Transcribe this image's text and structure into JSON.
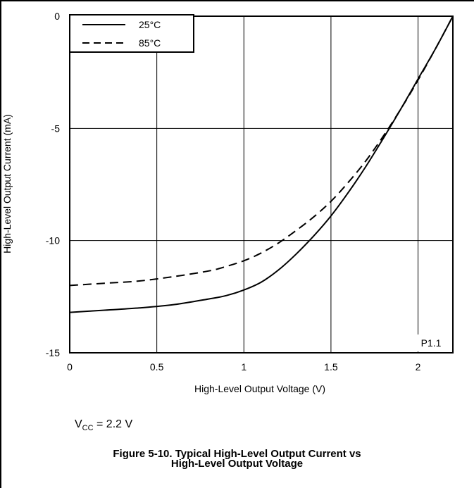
{
  "chart_data": {
    "type": "line",
    "xlabel": "High-Level Output Voltage (V)",
    "ylabel": "High-Level Output Current (mA)",
    "xlim": [
      0,
      2.2
    ],
    "ylim": [
      -15,
      0
    ],
    "xticks": [
      "0",
      "0.5",
      "1",
      "1.5",
      "2"
    ],
    "yticks": [
      "0",
      "-5",
      "-10",
      "-15"
    ],
    "grid": true,
    "legend_position": "top-left",
    "annotation": "P1.1",
    "series": [
      {
        "name": "25°C",
        "style": "solid",
        "color": "#000000",
        "x": [
          0,
          0.2,
          0.4,
          0.6,
          0.8,
          0.9,
          1.0,
          1.1,
          1.2,
          1.3,
          1.4,
          1.5,
          1.6,
          1.7,
          1.8,
          1.9,
          2.0,
          2.1,
          2.2
        ],
        "y": [
          -13.2,
          -13.1,
          -13.0,
          -12.85,
          -12.6,
          -12.45,
          -12.2,
          -11.85,
          -11.3,
          -10.6,
          -9.8,
          -8.9,
          -7.85,
          -6.7,
          -5.45,
          -4.15,
          -2.8,
          -1.45,
          0
        ]
      },
      {
        "name": "85°C",
        "style": "dashed",
        "color": "#000000",
        "x": [
          0,
          0.2,
          0.4,
          0.6,
          0.8,
          0.9,
          1.0,
          1.1,
          1.2,
          1.3,
          1.4,
          1.5,
          1.6,
          1.7,
          1.8,
          1.9,
          2.0,
          2.1,
          2.2
        ],
        "y": [
          -12.0,
          -11.9,
          -11.8,
          -11.6,
          -11.35,
          -11.15,
          -10.9,
          -10.55,
          -10.1,
          -9.55,
          -8.95,
          -8.25,
          -7.4,
          -6.45,
          -5.35,
          -4.15,
          -2.85,
          -1.45,
          0
        ]
      }
    ]
  },
  "conditions": {
    "vcc_prefix": "V",
    "vcc_sub": "CC",
    "vcc_value": " = 2.2 V"
  },
  "caption": {
    "line1": "Figure 5-10. Typical High-Level Output Current vs",
    "line2": "High-Level Output Voltage"
  }
}
